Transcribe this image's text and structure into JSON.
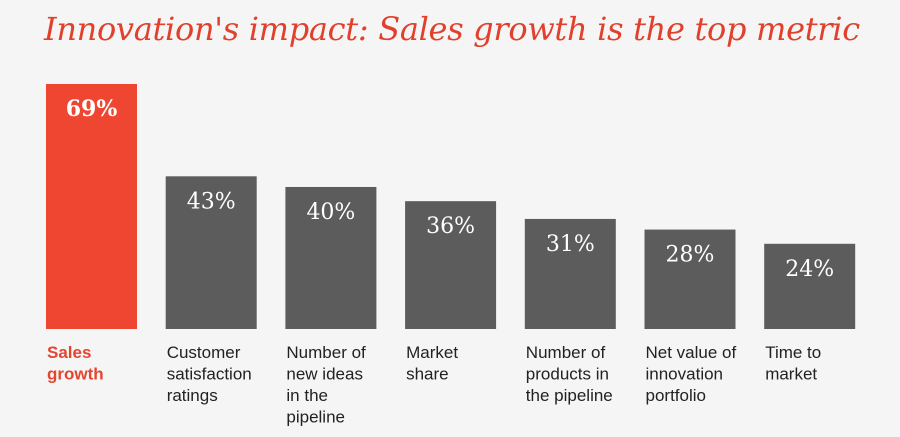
{
  "chart_data": {
    "type": "bar",
    "title": "Innovation's impact: Sales growth is the top metric",
    "xlabel": "",
    "ylabel": "",
    "ylim": [
      0,
      69
    ],
    "grid": false,
    "legend": "none",
    "categories": [
      [
        "Sales",
        "growth"
      ],
      [
        "Customer",
        "satisfaction",
        "ratings"
      ],
      [
        "Number of",
        "new ideas",
        "in the",
        "pipeline"
      ],
      [
        "Market",
        "share"
      ],
      [
        "Number of",
        "products in",
        "the pipeline"
      ],
      [
        "Net value of",
        "innovation",
        "portfolio"
      ],
      [
        "Time to",
        "market"
      ]
    ],
    "values": [
      69,
      43,
      40,
      36,
      31,
      28,
      24
    ],
    "value_labels": [
      "69%",
      "43%",
      "40%",
      "36%",
      "31%",
      "28%",
      "24%"
    ],
    "highlight_index": 0
  },
  "colors": {
    "highlight": "#ef4631",
    "bar": "#5c5c5c",
    "highlight_text": "#e54530",
    "title": "#e0402c"
  }
}
